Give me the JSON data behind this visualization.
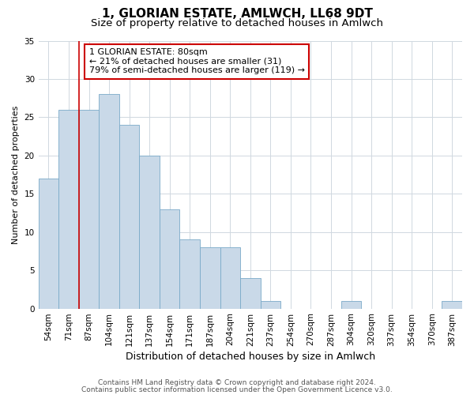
{
  "title1": "1, GLORIAN ESTATE, AMLWCH, LL68 9DT",
  "title2": "Size of property relative to detached houses in Amlwch",
  "xlabel": "Distribution of detached houses by size in Amlwch",
  "ylabel": "Number of detached properties",
  "categories": [
    "54sqm",
    "71sqm",
    "87sqm",
    "104sqm",
    "121sqm",
    "137sqm",
    "154sqm",
    "171sqm",
    "187sqm",
    "204sqm",
    "221sqm",
    "237sqm",
    "254sqm",
    "270sqm",
    "287sqm",
    "304sqm",
    "320sqm",
    "337sqm",
    "354sqm",
    "370sqm",
    "387sqm"
  ],
  "values": [
    17,
    26,
    26,
    28,
    24,
    20,
    13,
    9,
    8,
    8,
    4,
    1,
    0,
    0,
    0,
    1,
    0,
    0,
    0,
    0,
    1
  ],
  "bar_color": "#c9d9e8",
  "bar_edge_color": "#7aaac8",
  "vline_color": "#cc0000",
  "vline_x": 1.5,
  "annotation_line1": "1 GLORIAN ESTATE: 80sqm",
  "annotation_line2": "← 21% of detached houses are smaller (31)",
  "annotation_line3": "79% of semi-detached houses are larger (119) →",
  "annotation_box_color": "#ffffff",
  "annotation_box_edge": "#cc0000",
  "ylim": [
    0,
    35
  ],
  "yticks": [
    0,
    5,
    10,
    15,
    20,
    25,
    30,
    35
  ],
  "grid_color": "#d0d8e0",
  "footer1": "Contains HM Land Registry data © Crown copyright and database right 2024.",
  "footer2": "Contains public sector information licensed under the Open Government Licence v3.0.",
  "bg_color": "#ffffff",
  "title1_fontsize": 11,
  "title2_fontsize": 9.5,
  "xlabel_fontsize": 9,
  "ylabel_fontsize": 8,
  "tick_fontsize": 7.5,
  "annotation_fontsize": 8,
  "footer_fontsize": 6.5
}
